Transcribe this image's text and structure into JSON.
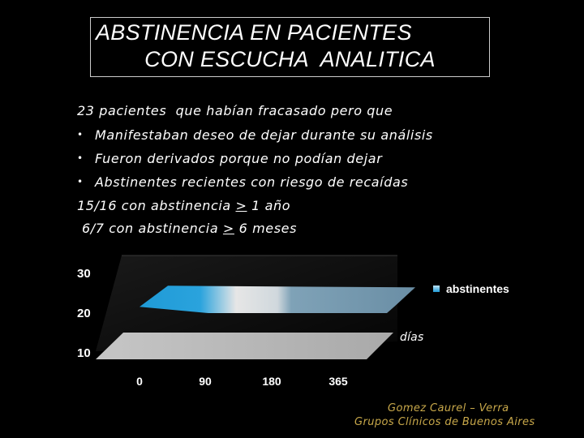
{
  "title": {
    "line1": "ABSTINENCIA EN PACIENTES",
    "line2": "CON ESCUCHA  ANALITICA"
  },
  "intro": "23 pacientes  que habían fracasado pero que",
  "bullets": [
    "Manifestaban deseo de dejar durante su análisis",
    "Fueron derivados porque no podían dejar",
    "Abstinentes recientes con riesgo de recaídas"
  ],
  "stats": [
    {
      "prefix": "15/16 con abstinencia ",
      "sym": ">",
      "suffix": " 1 año"
    },
    {
      "prefix": "6/7 con abstinencia ",
      "sym": ">",
      "suffix": " 6 meses"
    }
  ],
  "chart_data": {
    "type": "area",
    "categories": [
      "0",
      "90",
      "180",
      "365"
    ],
    "series": [
      {
        "name": "abstinentes",
        "values": [
          23,
          23,
          23,
          23
        ]
      }
    ],
    "yticks": [
      "30",
      "20",
      "10"
    ],
    "ylim": [
      10,
      30
    ],
    "xlabel": "días",
    "legend": "right",
    "three_d": true,
    "colors": {
      "series": "#6a8ea5",
      "highlight": "#1f9ad6",
      "floor": "#b5b5b5",
      "text": "#ffffff"
    }
  },
  "credit": {
    "line1": "Gomez Caurel – Verra",
    "line2": "Grupos Clínicos de Buenos Aires"
  }
}
